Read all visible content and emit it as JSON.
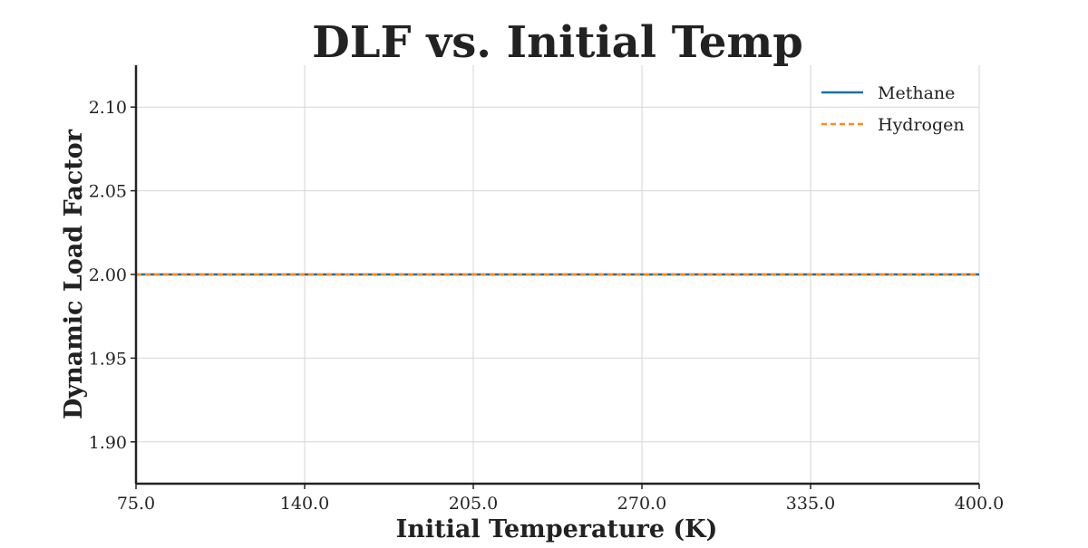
{
  "chart_data": {
    "type": "line",
    "title": "DLF vs. Initial Temp",
    "xlabel": "Initial Temperature (K)",
    "ylabel": "Dynamic Load Factor",
    "xlim": [
      75.0,
      400.0
    ],
    "ylim": [
      1.875,
      2.125
    ],
    "xticks": [
      75.0,
      140.0,
      205.0,
      270.0,
      335.0,
      400.0
    ],
    "xtick_labels": [
      "75.0",
      "140.0",
      "205.0",
      "270.0",
      "335.0",
      "400.0"
    ],
    "yticks": [
      1.9,
      1.95,
      2.0,
      2.05,
      2.1
    ],
    "ytick_labels": [
      "1.90",
      "1.95",
      "2.00",
      "2.05",
      "2.10"
    ],
    "grid": true,
    "legend_position": "top-right",
    "series": [
      {
        "name": "Methane",
        "color": "#1f6fa3",
        "style": "solid",
        "x": [
          75.0,
          400.0
        ],
        "y": [
          2.0,
          2.0
        ]
      },
      {
        "name": "Hydrogen",
        "color": "#ff8c1a",
        "style": "dashed",
        "x": [
          75.0,
          400.0
        ],
        "y": [
          2.0,
          2.0
        ]
      }
    ]
  }
}
